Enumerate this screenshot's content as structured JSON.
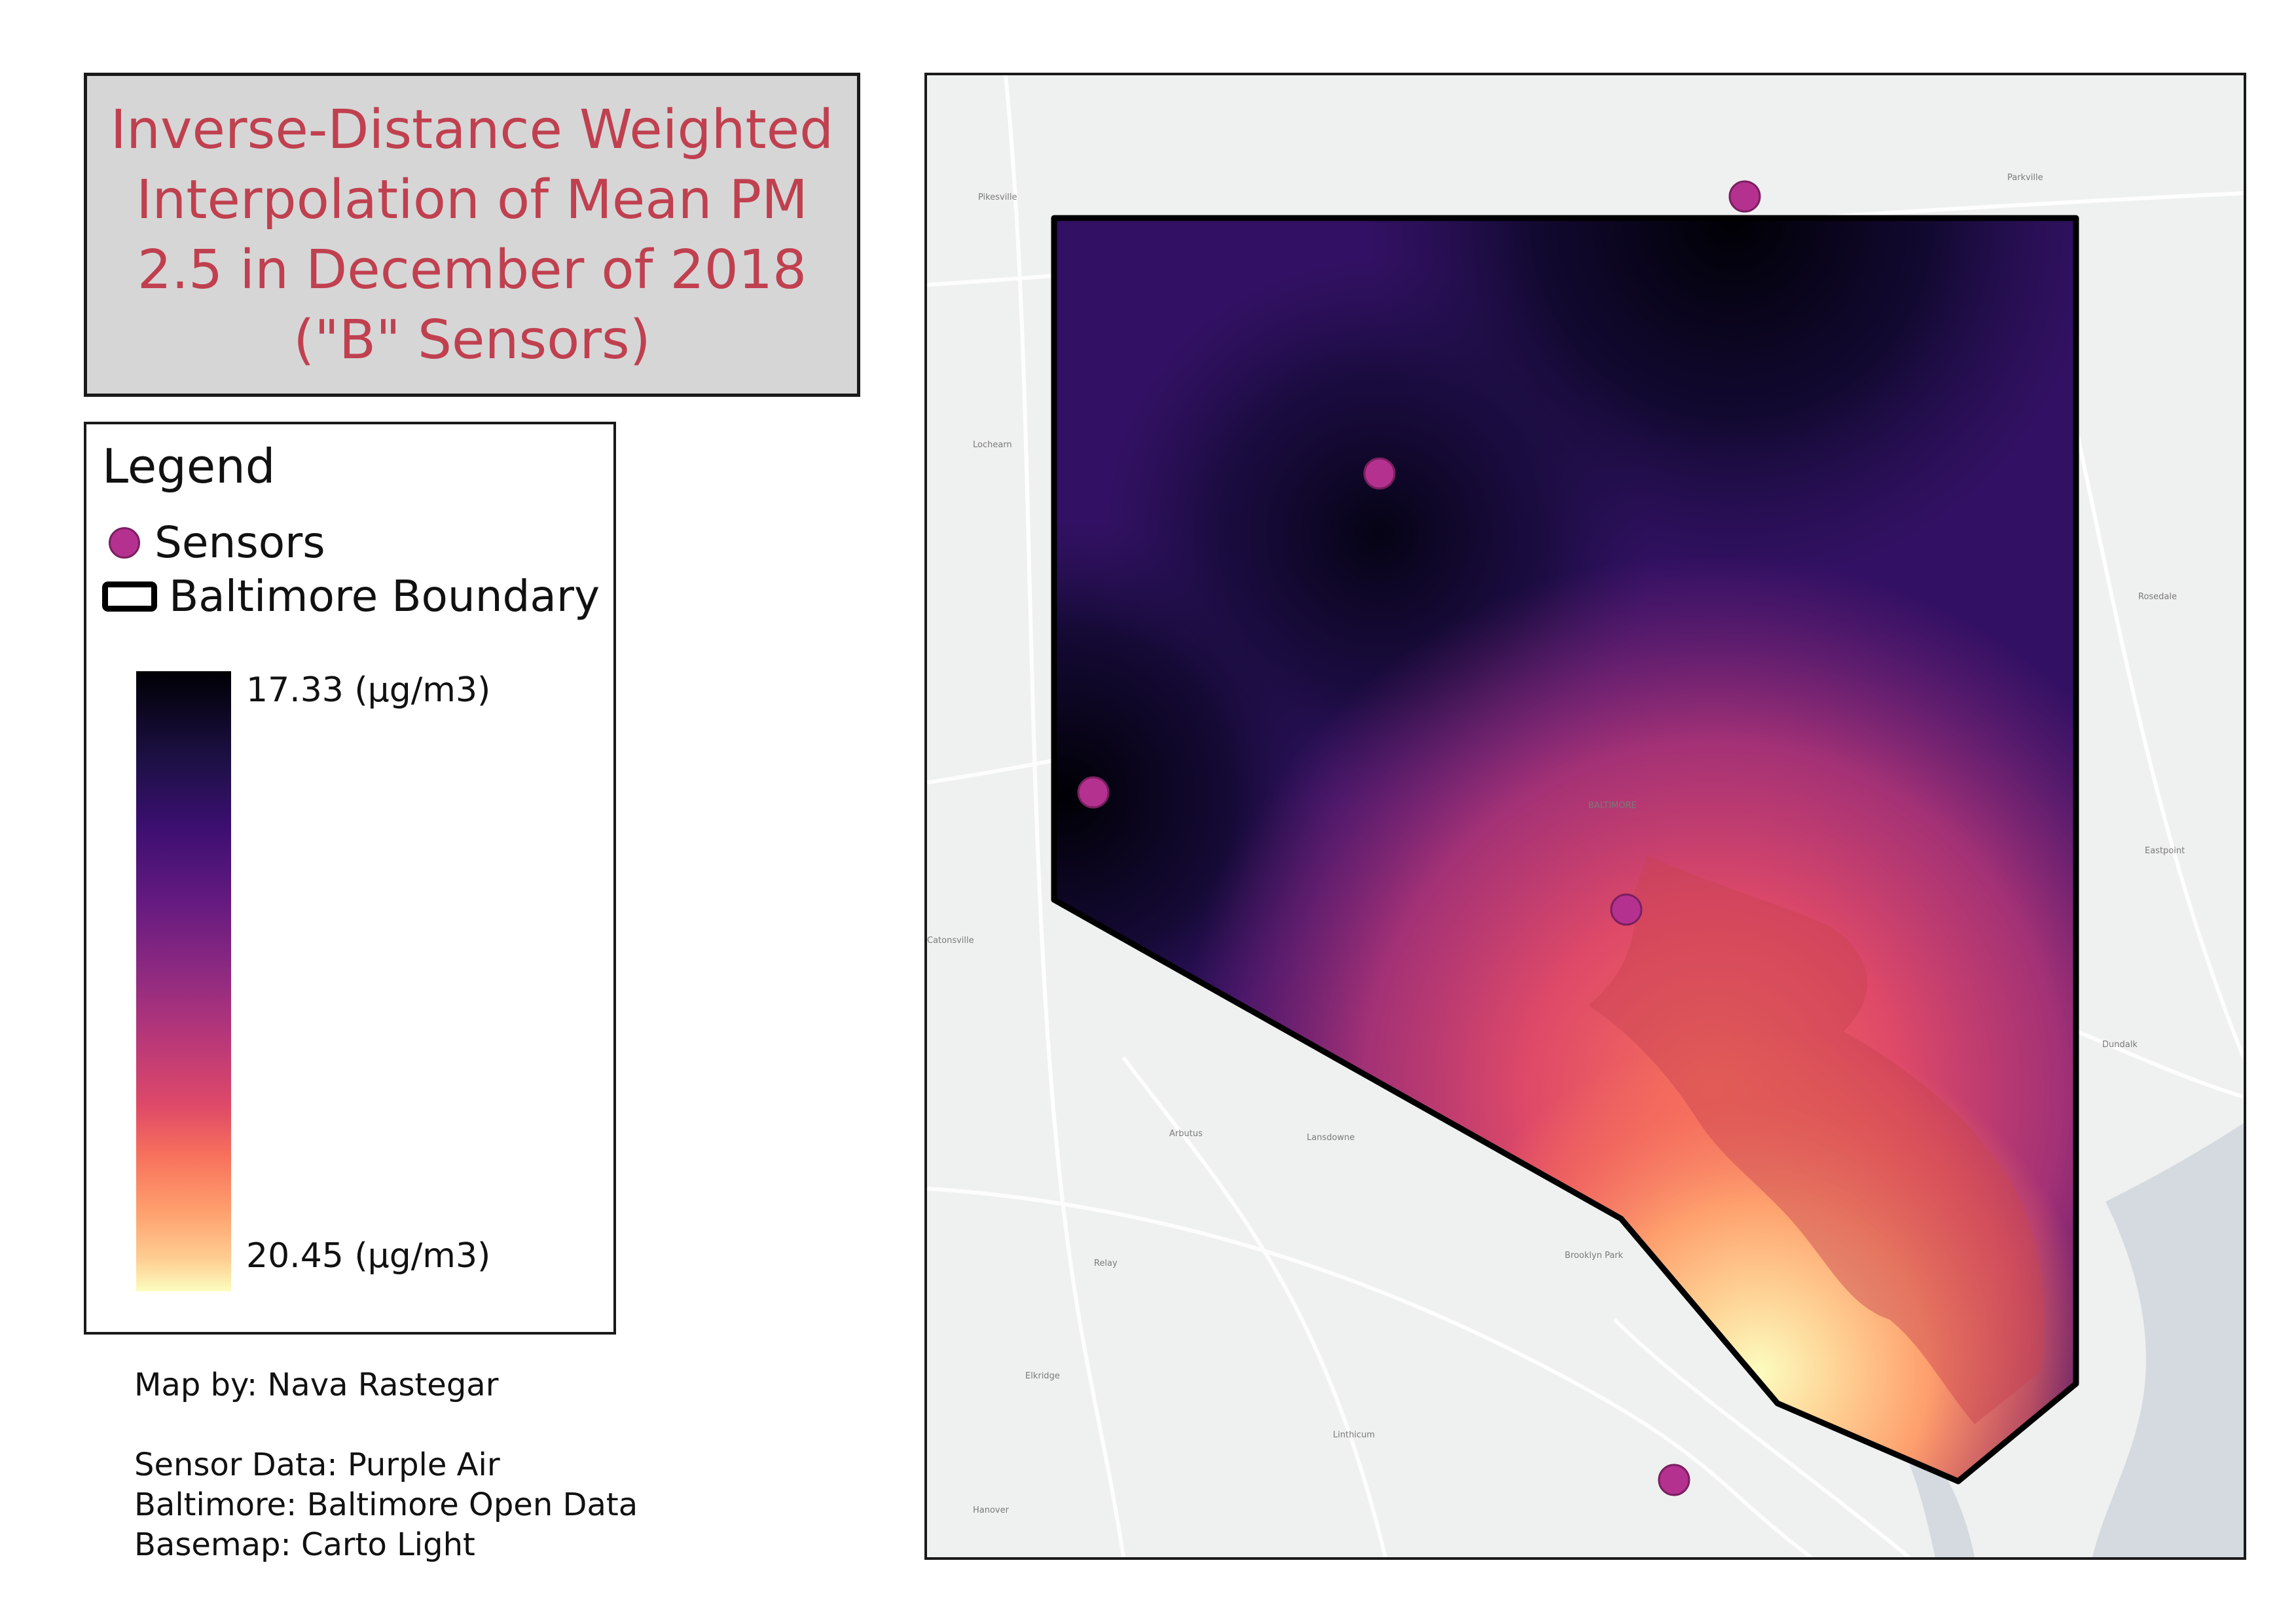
{
  "title": "Inverse-Distance Weighted Interpolation of Mean PM 2.5 in December of 2018 (\"B\" Sensors)",
  "legend": {
    "heading": "Legend",
    "sensors_label": "Sensors",
    "boundary_label": "Baltimore Boundary",
    "ramp_top": "17.33  (µg/m3)",
    "ramp_bottom": "20.45  (µg/m3)",
    "sensor_color": "#b5318f",
    "ramp_colors": [
      "#000004",
      "#3b0f70",
      "#8c2981",
      "#de4968",
      "#fe9f6d",
      "#fcfdbf"
    ]
  },
  "credits": {
    "map_by": "Map by: Nava Rastegar",
    "sensor_data": "Sensor Data: Purple Air",
    "baltimore": "Baltimore: Baltimore Open Data",
    "basemap": "Basemap: Carto Light"
  },
  "map": {
    "place_labels": [
      "BALTIMORE",
      "Pikesville",
      "Parkville",
      "Lochearn",
      "Rosedale",
      "Catonsville",
      "Arbutus",
      "Lansdowne",
      "Brooklyn Park",
      "Relay",
      "Elkridge",
      "Linthicum",
      "Dundalk",
      "Eastpoint",
      "Hanover"
    ]
  }
}
